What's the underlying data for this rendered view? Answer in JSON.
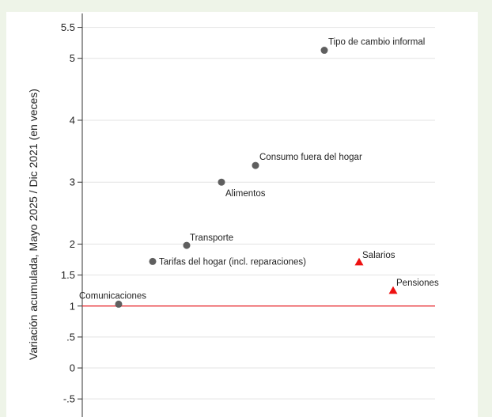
{
  "chart_data": {
    "type": "scatter",
    "title": "",
    "xlabel": "",
    "ylabel": "Variación acumulada, Mayo 2025 / Dic 2021 (en veces)",
    "ylim": [
      -0.6,
      5.75
    ],
    "yticks": [
      {
        "value": 5.5,
        "label": "5.5"
      },
      {
        "value": 5,
        "label": "5"
      },
      {
        "value": 4,
        "label": "4"
      },
      {
        "value": 3,
        "label": "3"
      },
      {
        "value": 2,
        "label": "2"
      },
      {
        "value": 1.5,
        "label": "1.5"
      },
      {
        "value": 1,
        "label": "1"
      },
      {
        "value": 0.5,
        "label": ".5"
      },
      {
        "value": 0,
        "label": "0"
      },
      {
        "value": -0.5,
        "label": "-.5"
      }
    ],
    "grid": true,
    "reference_line": {
      "y": 1,
      "color": "#e8242a"
    },
    "series": [
      {
        "marker": "circle",
        "color": "#5f5f5f",
        "points": [
          {
            "label": "Comunicaciones",
            "x": 1,
            "y": 1.03
          },
          {
            "label": "Tarifas del hogar (incl. reparaciones)",
            "x": 2,
            "y": 1.72
          },
          {
            "label": "Transporte",
            "x": 3,
            "y": 1.98
          },
          {
            "label": "Alimentos",
            "x": 4,
            "y": 3.0
          },
          {
            "label": "Consumo fuera del hogar",
            "x": 5,
            "y": 3.27
          },
          {
            "label": "Tipo de cambio informal",
            "x": 6,
            "y": 5.13
          }
        ]
      },
      {
        "marker": "triangle",
        "color": "#ee1111",
        "points": [
          {
            "label": "Salarios",
            "x": 7,
            "y": 1.71
          },
          {
            "label": "Pensiones",
            "x": 8,
            "y": 1.25
          }
        ]
      }
    ]
  }
}
